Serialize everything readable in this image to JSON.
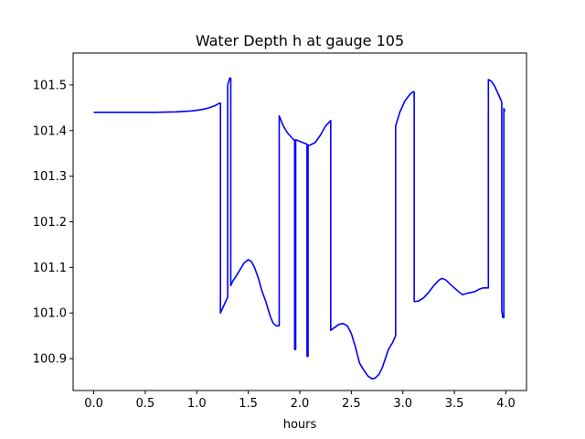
{
  "chart_data": {
    "type": "line",
    "title": "Water Depth h at gauge 105",
    "xlabel": "hours",
    "ylabel": "",
    "xlim": [
      -0.2,
      4.2
    ],
    "ylim": [
      100.83,
      101.57
    ],
    "xticks": [
      0.0,
      0.5,
      1.0,
      1.5,
      2.0,
      2.5,
      3.0,
      3.5,
      4.0
    ],
    "xtick_labels": [
      "0.0",
      "0.5",
      "1.0",
      "1.5",
      "2.0",
      "2.5",
      "3.0",
      "3.5",
      "4.0"
    ],
    "yticks": [
      100.9,
      101.0,
      101.1,
      101.2,
      101.3,
      101.4,
      101.5
    ],
    "ytick_labels": [
      "100.9",
      "101.0",
      "101.1",
      "101.2",
      "101.3",
      "101.4",
      "101.5"
    ],
    "grid": false,
    "series": [
      {
        "color": "#0000ff",
        "x": [
          0.0,
          0.3,
          0.6,
          0.8,
          0.95,
          1.05,
          1.12,
          1.18,
          1.22,
          1.23,
          1.23,
          1.27,
          1.3,
          1.3,
          1.32,
          1.33,
          1.33,
          1.35,
          1.38,
          1.42,
          1.46,
          1.5,
          1.53,
          1.56,
          1.6,
          1.63,
          1.67,
          1.71,
          1.74,
          1.77,
          1.8,
          1.8,
          1.84,
          1.88,
          1.92,
          1.95,
          1.95,
          1.96,
          1.96,
          2.07,
          2.07,
          2.08,
          2.08,
          2.1,
          2.15,
          2.2,
          2.25,
          2.3,
          2.3,
          2.33,
          2.38,
          2.42,
          2.46,
          2.5,
          2.54,
          2.58,
          2.62,
          2.66,
          2.7,
          2.73,
          2.77,
          2.8,
          2.83,
          2.86,
          2.9,
          2.93,
          2.93,
          2.97,
          3.02,
          3.07,
          3.1,
          3.11,
          3.11,
          3.15,
          3.2,
          3.25,
          3.3,
          3.35,
          3.38,
          3.42,
          3.46,
          3.51,
          3.55,
          3.58,
          3.62,
          3.66,
          3.7,
          3.74,
          3.78,
          3.82,
          3.83,
          3.83,
          3.86,
          3.89,
          3.92,
          3.95,
          3.96,
          3.96,
          3.97,
          3.98,
          3.98,
          3.99
        ],
        "y": [
          101.44,
          101.44,
          101.44,
          101.441,
          101.443,
          101.446,
          101.45,
          101.455,
          101.46,
          101.46,
          101.0,
          101.02,
          101.035,
          101.5,
          101.515,
          101.515,
          101.06,
          101.07,
          101.08,
          101.095,
          101.11,
          101.117,
          101.113,
          101.1,
          101.075,
          101.05,
          101.025,
          100.995,
          100.978,
          100.972,
          100.972,
          101.432,
          101.41,
          101.395,
          101.385,
          101.378,
          100.92,
          100.92,
          101.38,
          101.37,
          100.905,
          100.905,
          101.368,
          101.368,
          101.374,
          101.39,
          101.41,
          101.422,
          100.962,
          100.967,
          100.975,
          100.977,
          100.972,
          100.955,
          100.925,
          100.89,
          100.875,
          100.862,
          100.856,
          100.857,
          100.866,
          100.88,
          100.9,
          100.92,
          100.935,
          100.95,
          101.41,
          101.44,
          101.465,
          101.48,
          101.485,
          101.485,
          101.025,
          101.026,
          101.033,
          101.045,
          101.06,
          101.072,
          101.076,
          101.072,
          101.063,
          101.053,
          101.045,
          101.04,
          101.043,
          101.045,
          101.047,
          101.052,
          101.055,
          101.055,
          101.055,
          101.512,
          101.508,
          101.498,
          101.483,
          101.468,
          101.462,
          101.005,
          100.99,
          100.99,
          101.448,
          101.442
        ]
      }
    ]
  }
}
